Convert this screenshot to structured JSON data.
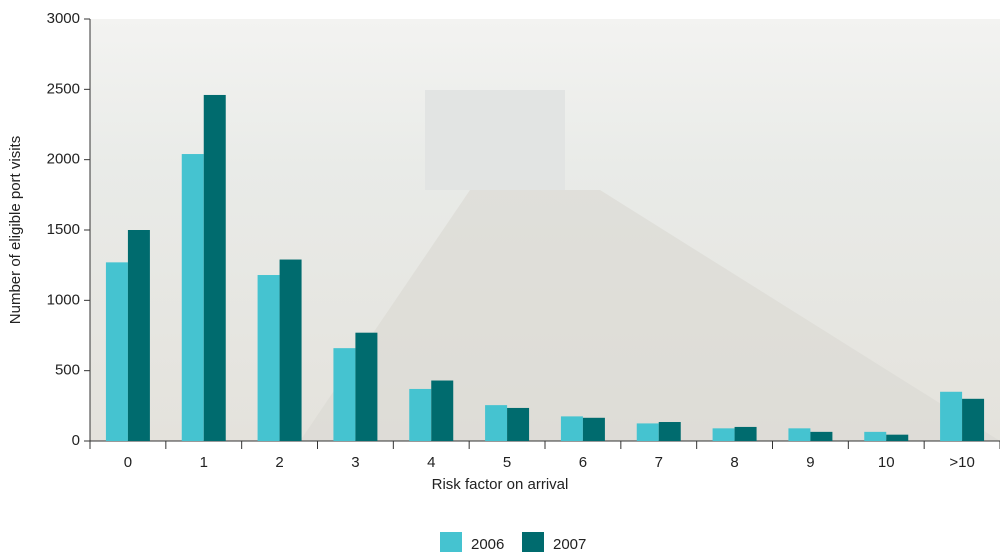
{
  "chart_data": {
    "type": "bar",
    "xlabel": "Risk factor on arrival",
    "ylabel": "Number of eligible port visits",
    "categories": [
      "0",
      "1",
      "2",
      "3",
      "4",
      "5",
      "6",
      "7",
      "8",
      "9",
      "10",
      ">10"
    ],
    "series": [
      {
        "name": "2006",
        "color": "#45c3d0",
        "values": [
          1270,
          2040,
          1180,
          660,
          370,
          255,
          175,
          125,
          90,
          90,
          65,
          350
        ]
      },
      {
        "name": "2007",
        "color": "#006b6e",
        "values": [
          1500,
          2460,
          1290,
          770,
          430,
          235,
          165,
          135,
          100,
          65,
          45,
          300
        ]
      }
    ],
    "ylim": [
      0,
      3000
    ],
    "yticks": [
      0,
      500,
      1000,
      1500,
      2000,
      2500,
      3000
    ],
    "legend": "bottom"
  }
}
